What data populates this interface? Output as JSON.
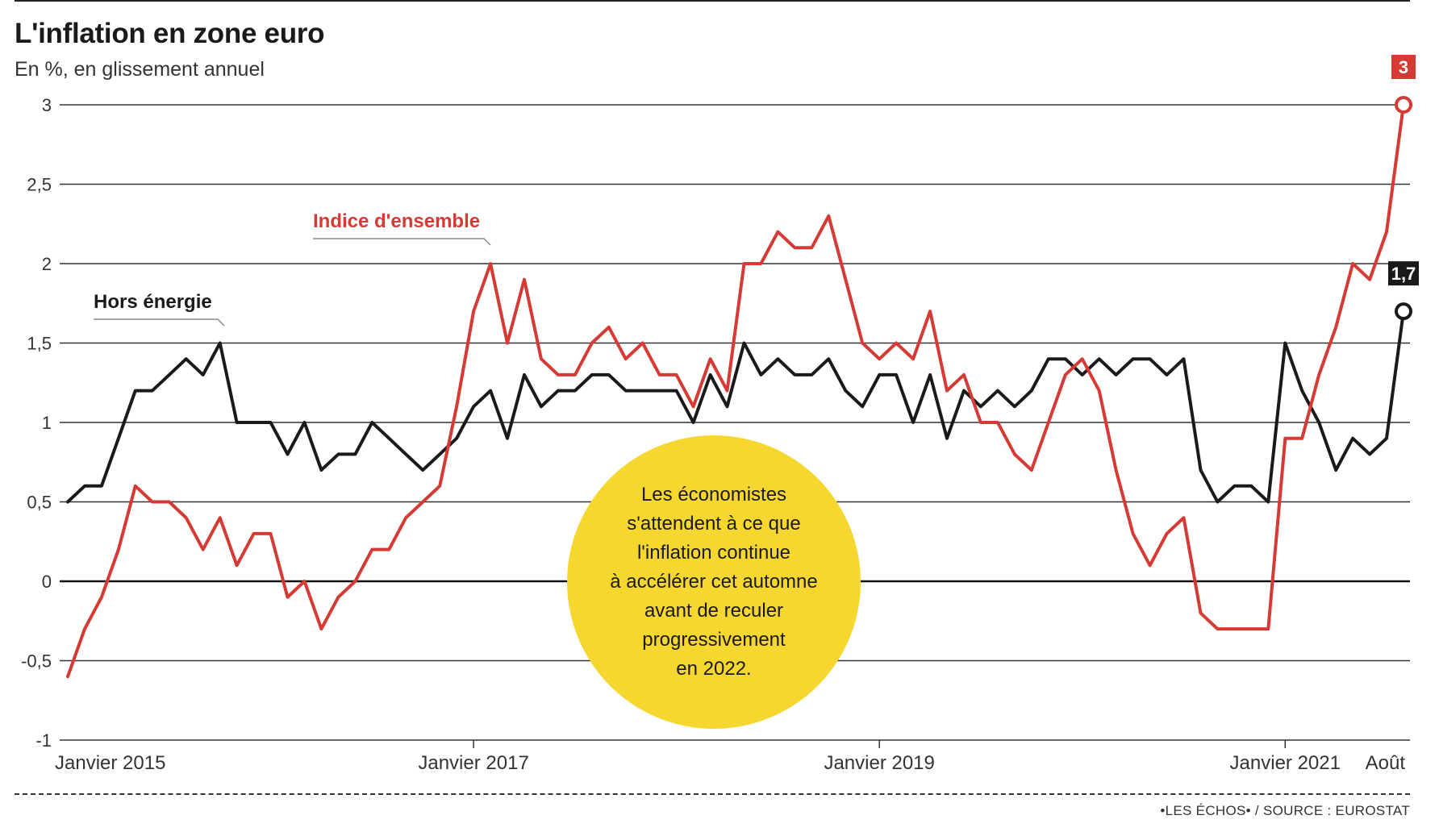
{
  "title": "L'inflation en zone euro",
  "subtitle": "En %, en glissement annuel",
  "bubble_text": "Les économistes\ns'attendent à ce que\nl'inflation continue\nà accélérer cet automne\navant de reculer\nprogressivement\nen 2022.",
  "source": "•LES ÉCHOS• / SOURCE : EUROSTAT",
  "colors": {
    "headline": "#d63a35",
    "core": "#1a1a1a",
    "bubble": "#f6d730"
  },
  "chart_data": {
    "type": "line",
    "title": "L'inflation en zone euro",
    "subtitle": "En %, en glissement annuel",
    "xlabel": "",
    "ylabel": "En %, en glissement annuel",
    "ylim": [
      -1,
      3
    ],
    "y_ticks": [
      "3",
      "2,5",
      "2",
      "1,5",
      "1",
      "0,5",
      "0",
      "-0,5",
      "-1"
    ],
    "y_tick_values": [
      3,
      2.5,
      2,
      1.5,
      1,
      0.5,
      0,
      -0.5,
      -1
    ],
    "x_tick_labels": [
      {
        "label": "Janvier 2015",
        "month_index": 0
      },
      {
        "label": "Janvier 2017",
        "month_index": 24
      },
      {
        "label": "Janvier 2019",
        "month_index": 48
      },
      {
        "label": "Janvier 2021",
        "month_index": 72
      },
      {
        "label": "Août",
        "month_index": 79
      }
    ],
    "grid": true,
    "series": [
      {
        "name": "Indice d'ensemble",
        "color": "#d63a35",
        "end_label": "3",
        "values": [
          -0.6,
          -0.3,
          -0.1,
          0.2,
          0.6,
          0.5,
          0.5,
          0.4,
          0.2,
          0.4,
          0.1,
          0.3,
          0.3,
          -0.1,
          0.0,
          -0.3,
          -0.1,
          0.0,
          0.2,
          0.2,
          0.4,
          0.5,
          0.6,
          1.1,
          1.7,
          2.0,
          1.5,
          1.9,
          1.4,
          1.3,
          1.3,
          1.5,
          1.6,
          1.4,
          1.5,
          1.3,
          1.3,
          1.1,
          1.4,
          1.2,
          2.0,
          2.0,
          2.2,
          2.1,
          2.1,
          2.3,
          1.9,
          1.5,
          1.4,
          1.5,
          1.4,
          1.7,
          1.2,
          1.3,
          1.0,
          1.0,
          0.8,
          0.7,
          1.0,
          1.3,
          1.4,
          1.2,
          0.7,
          0.3,
          0.1,
          0.3,
          0.4,
          -0.2,
          -0.3,
          -0.3,
          -0.3,
          -0.3,
          0.9,
          0.9,
          1.3,
          1.6,
          2.0,
          1.9,
          2.2,
          3.0
        ]
      },
      {
        "name": "Hors énergie",
        "color": "#1a1a1a",
        "end_label": "1,7",
        "values": [
          0.5,
          0.6,
          0.6,
          0.9,
          1.2,
          1.2,
          1.3,
          1.4,
          1.3,
          1.5,
          1.0,
          1.0,
          1.0,
          0.8,
          1.0,
          0.7,
          0.8,
          0.8,
          1.0,
          0.9,
          0.8,
          0.7,
          0.8,
          0.9,
          1.1,
          1.2,
          0.9,
          1.3,
          1.1,
          1.2,
          1.2,
          1.3,
          1.3,
          1.2,
          1.2,
          1.2,
          1.2,
          1.0,
          1.3,
          1.1,
          1.5,
          1.3,
          1.4,
          1.3,
          1.3,
          1.4,
          1.2,
          1.1,
          1.3,
          1.3,
          1.0,
          1.3,
          0.9,
          1.2,
          1.1,
          1.2,
          1.1,
          1.2,
          1.4,
          1.4,
          1.3,
          1.4,
          1.3,
          1.4,
          1.4,
          1.3,
          1.4,
          0.7,
          0.5,
          0.6,
          0.6,
          0.5,
          1.5,
          1.2,
          1.0,
          0.7,
          0.9,
          0.8,
          0.9,
          1.7
        ]
      }
    ],
    "annotations": [
      {
        "text": "Indice d'ensemble",
        "series": 0
      },
      {
        "text": "Hors énergie",
        "series": 1
      }
    ]
  }
}
